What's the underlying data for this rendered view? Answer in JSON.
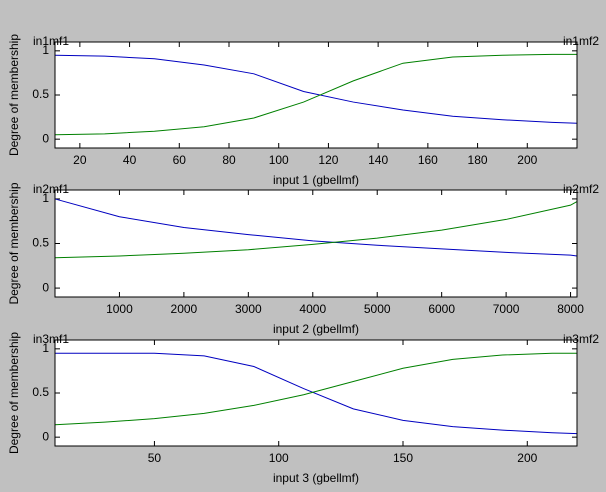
{
  "chart_data": [
    {
      "type": "line",
      "xlabel": "input 1 (gbellmf)",
      "ylabel": "Degree of membership",
      "x": [
        10,
        30,
        50,
        70,
        90,
        110,
        130,
        150,
        170,
        190,
        210,
        220
      ],
      "series": [
        {
          "name": "in1mf1",
          "color": "#0000c0",
          "values": [
            0.95,
            0.94,
            0.91,
            0.84,
            0.74,
            0.54,
            0.42,
            0.33,
            0.26,
            0.22,
            0.19,
            0.18
          ]
        },
        {
          "name": "in1mf2",
          "color": "#008000",
          "values": [
            0.05,
            0.06,
            0.09,
            0.14,
            0.24,
            0.42,
            0.66,
            0.86,
            0.93,
            0.95,
            0.96,
            0.96
          ]
        }
      ],
      "xlim": [
        10,
        220
      ],
      "ylim": [
        -0.1,
        1.1
      ],
      "xticks": [
        20,
        40,
        60,
        80,
        100,
        120,
        140,
        160,
        180,
        200
      ],
      "yticks": [
        0,
        0.5,
        1
      ]
    },
    {
      "type": "line",
      "xlabel": "input 2 (gbellmf)",
      "ylabel": "Degree of membership",
      "x": [
        0,
        1000,
        2000,
        3000,
        4000,
        5000,
        6000,
        7000,
        8000,
        8100
      ],
      "series": [
        {
          "name": "in2mf1",
          "color": "#0000c0",
          "values": [
            1.0,
            0.8,
            0.68,
            0.6,
            0.53,
            0.48,
            0.44,
            0.4,
            0.37,
            0.36
          ]
        },
        {
          "name": "in2mf2",
          "color": "#008000",
          "values": [
            0.34,
            0.36,
            0.39,
            0.43,
            0.49,
            0.56,
            0.65,
            0.77,
            0.93,
            0.97
          ]
        }
      ],
      "xlim": [
        0,
        8100
      ],
      "ylim": [
        -0.1,
        1.1
      ],
      "xticks": [
        1000,
        2000,
        3000,
        4000,
        5000,
        6000,
        7000,
        8000
      ],
      "yticks": [
        0,
        0.5,
        1
      ]
    },
    {
      "type": "line",
      "xlabel": "input 3 (gbellmf)",
      "ylabel": "Degree of membership",
      "x": [
        10,
        30,
        50,
        70,
        90,
        110,
        130,
        150,
        170,
        190,
        210,
        220
      ],
      "series": [
        {
          "name": "in3mf1",
          "color": "#0000c0",
          "values": [
            0.95,
            0.95,
            0.95,
            0.92,
            0.8,
            0.55,
            0.32,
            0.19,
            0.12,
            0.08,
            0.05,
            0.04
          ]
        },
        {
          "name": "in3mf2",
          "color": "#008000",
          "values": [
            0.14,
            0.17,
            0.21,
            0.27,
            0.36,
            0.48,
            0.63,
            0.78,
            0.88,
            0.93,
            0.95,
            0.95
          ]
        }
      ],
      "xlim": [
        10,
        220
      ],
      "ylim": [
        -0.1,
        1.1
      ],
      "xticks": [
        50,
        100,
        150,
        200
      ],
      "yticks": [
        0,
        0.5,
        1
      ]
    }
  ]
}
